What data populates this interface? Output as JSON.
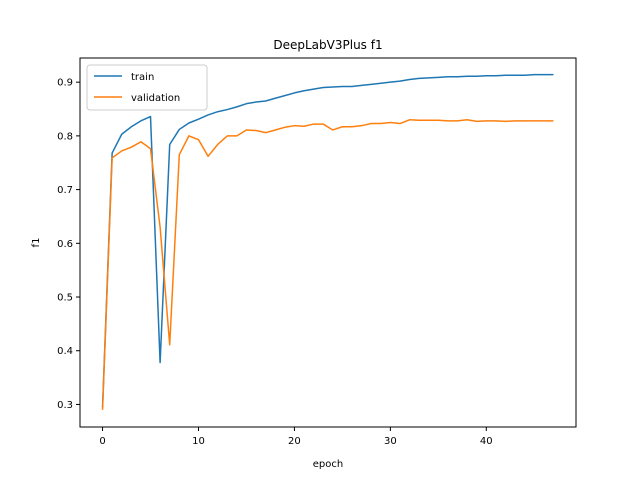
{
  "chart_data": {
    "type": "line",
    "title": "DeepLabV3Plus f1",
    "xlabel": "epoch",
    "ylabel": "f1",
    "xlim": [
      -2.35,
      49.35
    ],
    "ylim": [
      0.258,
      0.945
    ],
    "xticks": [
      0,
      10,
      20,
      30,
      40
    ],
    "yticks": [
      0.3,
      0.4,
      0.5,
      0.6,
      0.7,
      0.8,
      0.9
    ],
    "grid": false,
    "legend_position": "top-left",
    "x": [
      0,
      1,
      2,
      3,
      4,
      5,
      6,
      7,
      8,
      9,
      10,
      11,
      12,
      13,
      14,
      15,
      16,
      17,
      18,
      19,
      20,
      21,
      22,
      23,
      24,
      25,
      26,
      27,
      28,
      29,
      30,
      31,
      32,
      33,
      34,
      35,
      36,
      37,
      38,
      39,
      40,
      41,
      42,
      43,
      44,
      45,
      46,
      47
    ],
    "series": [
      {
        "name": "train",
        "color": "#1f77b4",
        "values": [
          0.295,
          0.768,
          0.803,
          0.817,
          0.828,
          0.836,
          0.378,
          0.784,
          0.812,
          0.824,
          0.831,
          0.839,
          0.845,
          0.849,
          0.854,
          0.86,
          0.863,
          0.865,
          0.87,
          0.875,
          0.88,
          0.884,
          0.887,
          0.89,
          0.891,
          0.892,
          0.892,
          0.894,
          0.896,
          0.898,
          0.9,
          0.902,
          0.905,
          0.907,
          0.908,
          0.909,
          0.91,
          0.91,
          0.911,
          0.911,
          0.912,
          0.912,
          0.913,
          0.913,
          0.913,
          0.914,
          0.914,
          0.914
        ]
      },
      {
        "name": "validation",
        "color": "#ff7f0e",
        "values": [
          0.29,
          0.759,
          0.772,
          0.779,
          0.789,
          0.776,
          0.63,
          0.411,
          0.765,
          0.8,
          0.793,
          0.762,
          0.784,
          0.8,
          0.8,
          0.811,
          0.81,
          0.806,
          0.811,
          0.816,
          0.819,
          0.818,
          0.822,
          0.822,
          0.811,
          0.817,
          0.817,
          0.819,
          0.823,
          0.823,
          0.825,
          0.823,
          0.83,
          0.829,
          0.829,
          0.829,
          0.828,
          0.828,
          0.83,
          0.827,
          0.828,
          0.828,
          0.827,
          0.828,
          0.828,
          0.828,
          0.828,
          0.828
        ]
      }
    ]
  }
}
